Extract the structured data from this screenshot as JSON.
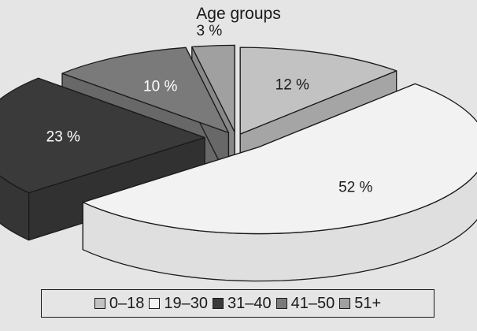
{
  "chart_data": {
    "type": "pie",
    "title": "Age groups",
    "legend_position": "bottom",
    "slices": [
      {
        "label": "0–18",
        "value": 12,
        "data_label": "12 %",
        "color": "#c2c2c2"
      },
      {
        "label": "19–30",
        "value": 52,
        "data_label": "52 %",
        "color": "#f2f2f2"
      },
      {
        "label": "31–40",
        "value": 23,
        "data_label": "23 %",
        "color": "#3a3a3a"
      },
      {
        "label": "41–50",
        "value": 10,
        "data_label": "10 %",
        "color": "#7a7a7a"
      },
      {
        "label": "51+",
        "value": 3,
        "data_label": "3 %",
        "color": "#a0a0a0"
      }
    ]
  }
}
